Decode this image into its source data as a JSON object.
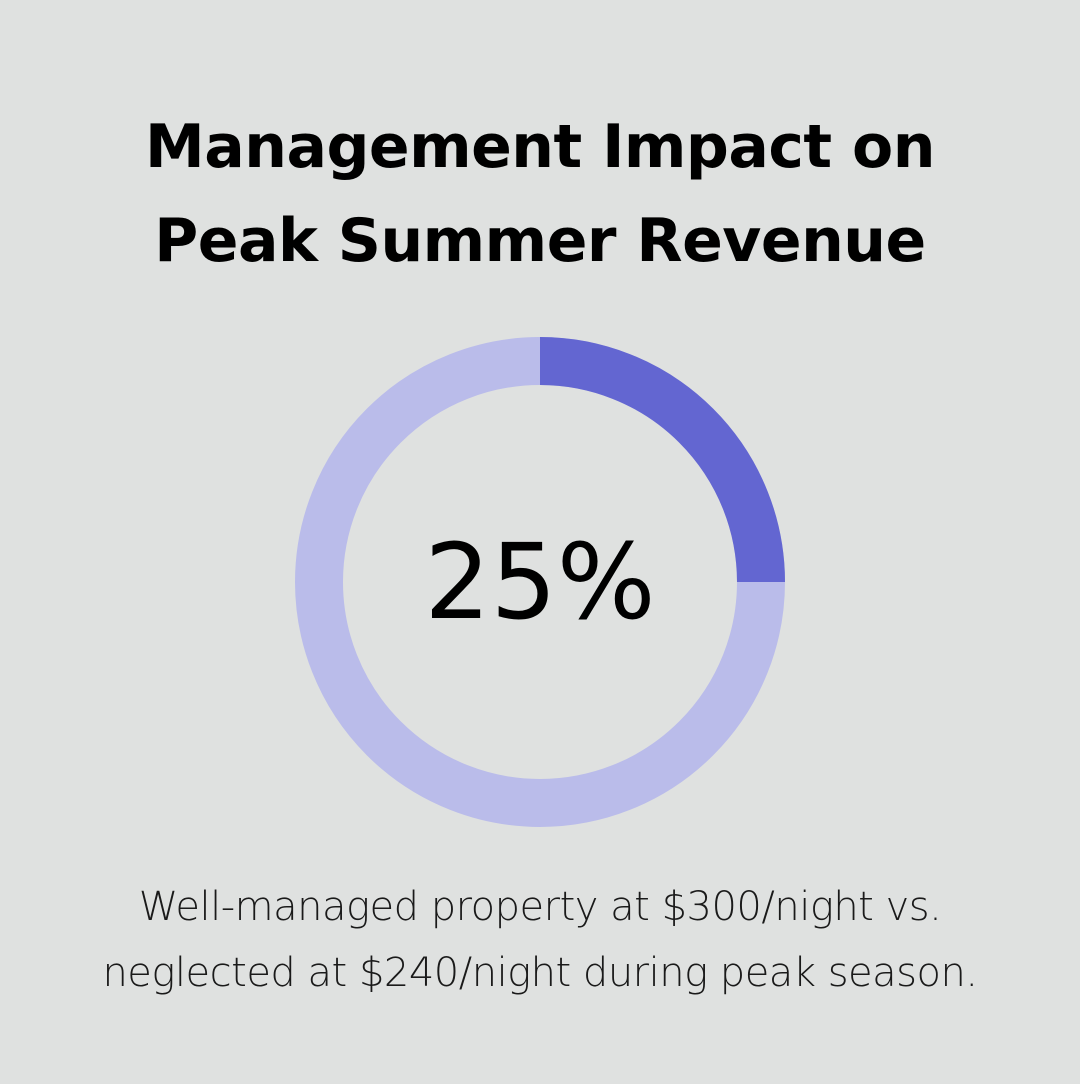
{
  "title_lines": [
    "Management Impact on",
    "Peak Summer Revenue"
  ],
  "caption_lines": [
    "Well-managed property at $300/night vs.",
    "neglected at $240/night during peak season."
  ],
  "colors": {
    "background": "#dfe1e0",
    "highlight": "#6366d1",
    "track": "#babcea",
    "text": "#000000"
  },
  "chart_data": {
    "type": "pie",
    "value": 25,
    "total": 100,
    "center_label": "25%",
    "title": "Management Impact on Peak Summer Revenue"
  }
}
